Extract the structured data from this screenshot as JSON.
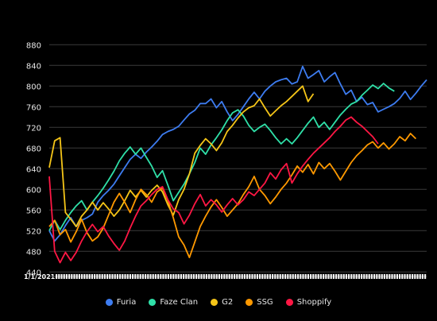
{
  "chart_data": {
    "type": "line",
    "title": "",
    "xlabel": "",
    "ylabel": "",
    "ylim": [
      425,
      905
    ],
    "yticks": [
      440,
      480,
      520,
      560,
      600,
      640,
      680,
      720,
      760,
      800,
      840,
      880
    ],
    "grid": true,
    "legend_position": "bottom",
    "x_tick_label_first": "1/1/2021",
    "x_tick_labels_illegible": true,
    "series": [
      {
        "name": "Furia",
        "color": "#3d7cf0",
        "values": [
          520,
          500,
          512,
          530,
          545,
          528,
          540,
          545,
          552,
          575,
          588,
          598,
          610,
          626,
          642,
          658,
          668,
          660,
          672,
          682,
          693,
          706,
          712,
          716,
          722,
          734,
          746,
          753,
          766,
          766,
          775,
          758,
          770,
          750,
          733,
          745,
          760,
          775,
          788,
          775,
          790,
          800,
          808,
          812,
          815,
          804,
          808,
          838,
          815,
          822,
          830,
          808,
          818,
          826,
          804,
          784,
          792,
          770,
          778,
          764,
          768,
          750,
          755,
          760,
          766,
          776,
          790,
          774,
          786,
          800,
          812
        ]
      },
      {
        "name": "Faze Clan",
        "color": "#2fe0a8",
        "values": [
          520,
          540,
          522,
          540,
          555,
          568,
          578,
          560,
          575,
          588,
          602,
          618,
          635,
          655,
          670,
          682,
          668,
          680,
          662,
          645,
          623,
          636,
          608,
          578,
          594,
          610,
          630,
          652,
          680,
          668,
          686,
          700,
          715,
          733,
          748,
          754,
          742,
          724,
          712,
          720,
          726,
          714,
          700,
          688,
          698,
          688,
          700,
          714,
          728,
          740,
          720,
          730,
          716,
          730,
          744,
          755,
          765,
          770,
          782,
          792,
          802,
          795,
          805,
          796,
          790
        ]
      },
      {
        "name": "G2",
        "color": "#f5c518",
        "values": [
          642,
          694,
          700,
          555,
          542,
          528,
          548,
          560,
          575,
          560,
          574,
          562,
          548,
          560,
          578,
          598,
          585,
          598,
          585,
          598,
          608,
          595,
          570,
          550,
          580,
          600,
          630,
          670,
          685,
          698,
          688,
          675,
          690,
          712,
          724,
          738,
          750,
          758,
          762,
          775,
          758,
          742,
          752,
          762,
          770,
          780,
          790,
          800,
          770,
          785
        ]
      },
      {
        "name": "SSG",
        "color": "#ff9900",
        "values": [
          528,
          540,
          512,
          522,
          498,
          518,
          542,
          516,
          500,
          508,
          525,
          550,
          575,
          592,
          575,
          555,
          580,
          600,
          590,
          575,
          595,
          602,
          578,
          545,
          508,
          492,
          468,
          498,
          528,
          548,
          566,
          580,
          565,
          548,
          560,
          572,
          590,
          605,
          625,
          600,
          588,
          572,
          585,
          600,
          612,
          628,
          645,
          633,
          648,
          630,
          652,
          640,
          650,
          635,
          618,
          635,
          652,
          665,
          675,
          686,
          692,
          680,
          690,
          678,
          688,
          702,
          694,
          708,
          698
        ]
      },
      {
        "name": "Shoppify",
        "color": "#ff1744",
        "values": [
          625,
          480,
          458,
          478,
          462,
          478,
          500,
          518,
          532,
          518,
          528,
          510,
          495,
          482,
          500,
          525,
          548,
          568,
          578,
          590,
          600,
          605,
          580,
          562,
          555,
          533,
          550,
          572,
          590,
          568,
          580,
          570,
          556,
          570,
          582,
          570,
          580,
          595,
          588,
          600,
          612,
          632,
          620,
          638,
          650,
          612,
          630,
          645,
          658,
          670,
          680,
          690,
          700,
          712,
          722,
          734,
          740,
          730,
          722,
          712,
          702,
          688
        ]
      }
    ]
  }
}
